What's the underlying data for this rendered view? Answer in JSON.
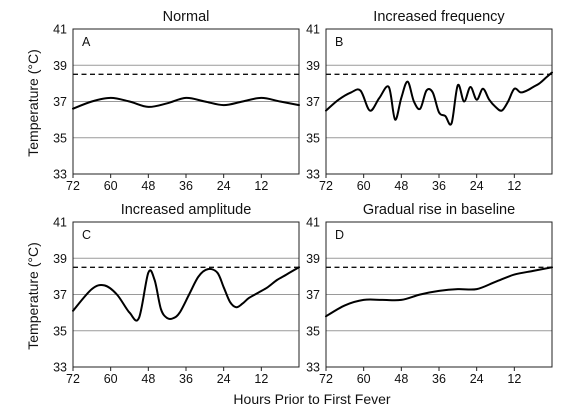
{
  "figure": {
    "ylabel": "Temperature (°C)",
    "xlabel": "Hours Prior to First Fever"
  },
  "chart_data": [
    {
      "type": "line",
      "panel": "A",
      "title": "Normal",
      "xlabel": "",
      "ylabel": "Temperature (°C)",
      "x_reversed": true,
      "xlim": [
        72,
        0
      ],
      "ylim": [
        33,
        41
      ],
      "xticks": [
        72,
        60,
        48,
        36,
        24,
        12
      ],
      "yticks": [
        33,
        35,
        37,
        39,
        41
      ],
      "grid": "horizontal",
      "threshold": 38.5,
      "series": [
        {
          "x": [
            72,
            66,
            60,
            54,
            48,
            42,
            36,
            30,
            24,
            18,
            12,
            6,
            0
          ],
          "y": [
            36.6,
            37.0,
            37.2,
            37.0,
            36.7,
            36.9,
            37.2,
            37.0,
            36.8,
            37.0,
            37.2,
            37.0,
            36.8
          ]
        }
      ]
    },
    {
      "type": "line",
      "panel": "B",
      "title": "Increased frequency",
      "xlabel": "",
      "ylabel": "",
      "x_reversed": true,
      "xlim": [
        72,
        0
      ],
      "ylim": [
        33,
        41
      ],
      "xticks": [
        72,
        60,
        48,
        36,
        24,
        12
      ],
      "yticks": [
        33,
        35,
        37,
        39,
        41
      ],
      "grid": "horizontal",
      "threshold": 38.5,
      "series": [
        {
          "x": [
            72,
            68,
            64,
            61,
            58,
            55,
            52,
            50,
            48,
            46,
            44,
            42,
            40,
            38,
            36,
            34,
            32,
            30,
            28,
            26,
            24,
            22,
            20,
            18,
            16,
            14,
            12,
            10,
            8,
            6,
            4,
            2,
            0
          ],
          "y": [
            36.5,
            37.1,
            37.5,
            37.6,
            36.5,
            37.2,
            37.8,
            36.0,
            37.2,
            38.1,
            37.0,
            36.6,
            37.6,
            37.5,
            36.4,
            36.2,
            35.8,
            37.9,
            37.0,
            37.8,
            37.1,
            37.7,
            37.1,
            36.7,
            36.5,
            37.0,
            37.7,
            37.5,
            37.6,
            37.8,
            38.0,
            38.3,
            38.6
          ]
        }
      ]
    },
    {
      "type": "line",
      "panel": "C",
      "title": "Increased amplitude",
      "xlabel": "Hours Prior to First Fever",
      "ylabel": "Temperature (°C)",
      "x_reversed": true,
      "xlim": [
        72,
        0
      ],
      "ylim": [
        33,
        41
      ],
      "xticks": [
        72,
        60,
        48,
        36,
        24,
        12
      ],
      "yticks": [
        33,
        35,
        37,
        39,
        41
      ],
      "grid": "horizontal",
      "threshold": 38.5,
      "series": [
        {
          "x": [
            72,
            66,
            62,
            58,
            54,
            51,
            48,
            46,
            44,
            42,
            40,
            38,
            35,
            32,
            29,
            26,
            24,
            22,
            20,
            18,
            16,
            13,
            10,
            7,
            4,
            0
          ],
          "y": [
            36.1,
            37.3,
            37.5,
            37.0,
            36.0,
            35.7,
            38.2,
            37.8,
            36.2,
            35.7,
            35.7,
            36.0,
            37.0,
            38.0,
            38.4,
            38.2,
            37.4,
            36.6,
            36.3,
            36.5,
            36.8,
            37.1,
            37.4,
            37.8,
            38.1,
            38.5
          ]
        }
      ]
    },
    {
      "type": "line",
      "panel": "D",
      "title": "Gradual rise in baseline",
      "xlabel": "Hours Prior to First Fever",
      "ylabel": "",
      "x_reversed": true,
      "xlim": [
        72,
        0
      ],
      "ylim": [
        33,
        41
      ],
      "xticks": [
        72,
        60,
        48,
        36,
        24,
        12
      ],
      "yticks": [
        33,
        35,
        37,
        39,
        41
      ],
      "grid": "horizontal",
      "threshold": 38.5,
      "series": [
        {
          "x": [
            72,
            66,
            60,
            54,
            48,
            42,
            36,
            30,
            24,
            18,
            12,
            6,
            0
          ],
          "y": [
            35.8,
            36.4,
            36.7,
            36.7,
            36.7,
            37.0,
            37.2,
            37.3,
            37.3,
            37.7,
            38.1,
            38.3,
            38.5
          ]
        }
      ]
    }
  ]
}
